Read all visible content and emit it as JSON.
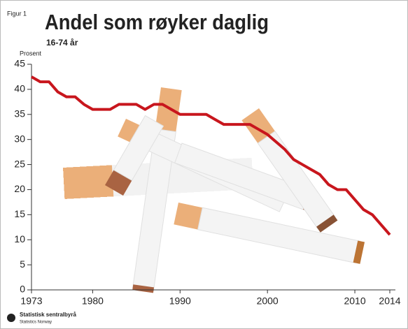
{
  "figure_label": "Figur 1",
  "footer": {
    "name": "Statistisk sentralbyrå",
    "name_en": "Statistics Norway"
  },
  "chart_data": {
    "type": "line",
    "title": "Andel som røyker daglig",
    "subtitle": "16-74 år",
    "y_label": "Prosent",
    "x": [
      1973,
      1974,
      1975,
      1976,
      1977,
      1978,
      1979,
      1980,
      1981,
      1982,
      1983,
      1984,
      1985,
      1986,
      1987,
      1988,
      1989,
      1990,
      1991,
      1992,
      1993,
      1994,
      1995,
      1996,
      1997,
      1998,
      1999,
      2000,
      2001,
      2002,
      2003,
      2004,
      2005,
      2006,
      2007,
      2008,
      2009,
      2010,
      2011,
      2012,
      2013,
      2014
    ],
    "series": [
      {
        "name": "Andel som røyker daglig",
        "color": "#c8161d",
        "values": [
          42.5,
          41.5,
          41.5,
          39.5,
          38.5,
          38.5,
          37,
          36,
          36,
          36,
          37,
          37,
          37,
          36,
          37,
          37,
          36,
          35,
          35,
          35,
          35,
          34,
          33,
          33,
          33,
          33,
          32,
          31,
          29.5,
          28,
          26,
          25,
          24,
          23,
          21,
          20,
          20,
          18,
          16,
          15,
          13,
          11
        ]
      }
    ],
    "xlim": [
      1973,
      2014
    ],
    "xticks": [
      1973,
      1980,
      1990,
      2000,
      2010,
      2014
    ],
    "ylim": [
      0,
      45
    ],
    "yticks": [
      0,
      5,
      10,
      15,
      20,
      25,
      30,
      35,
      40,
      45
    ]
  }
}
